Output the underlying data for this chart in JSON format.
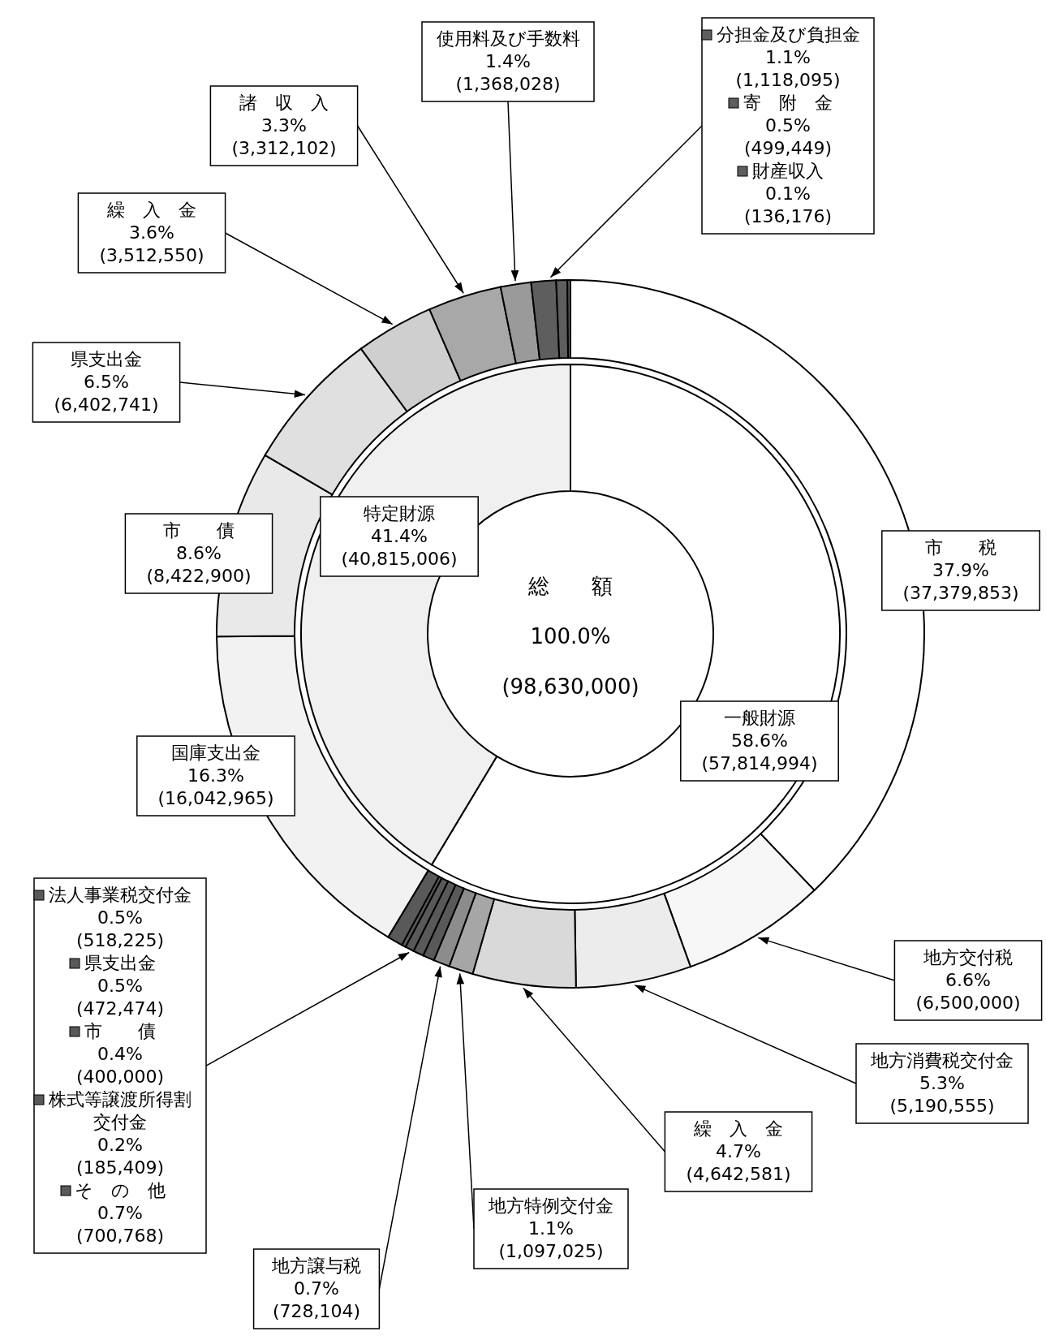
{
  "chart_data": [
    {
      "type": "donut",
      "legend": "left",
      "categories": [
        "市　　税",
        "地方交付税",
        "地方消費税交付金",
        "繰　入　金",
        "地方特例交付金",
        "地方譲与税",
        "法人事業税交付金",
        "県支出金",
        "市　　債",
        "株式等譲渡所得割交付金",
        "そ　の　他",
        "国庫支出金",
        "市　　債",
        "県支出金",
        "繰　入　金",
        "諸　収　入",
        "使用料及び手数料",
        "分担金及び負担金",
        "寄　附　金",
        "財産収入"
      ],
      "values": [
        37379853,
        6500000,
        5190555,
        4642581,
        1097025,
        728104,
        518225,
        472474,
        400000,
        185409,
        700768,
        16042965,
        8422900,
        6402741,
        3512550,
        3312102,
        1368028,
        1118095,
        499449,
        136176
      ],
      "value_labels": [
        "37.9%\n(37,379,853)",
        "6.6%\n(6,500,000)",
        "5.3%\n(5,190,555)",
        "4.7%\n(4,642,581)",
        "1.1%\n(1,097,025)",
        "0.7%\n(728,104)",
        "0.5%\n(518,225)",
        "0.5%\n(472,474)",
        "0.4%\n(400,000)",
        "0.2%\n(185,409)",
        "0.7%\n(700,768)",
        "16.3%\n(16,042,965)",
        "8.6%\n(8,422,900)",
        "6.5%\n(6,402,741)",
        "3.6%\n(3,512,550)",
        "3.3%\n(3,312,102)",
        "1.4%\n(1,368,028)",
        "1.1%\n(1,118,095)",
        "0.5%\n(499,449)",
        "0.1%\n(136,176)"
      ],
      "colors": [
        "#ffffff",
        "#f7f7f7",
        "#ececec",
        "#d9d9d9",
        "#a6a6a6",
        "#8c8c8c",
        "#595959",
        "#595959",
        "#595959",
        "#595959",
        "#595959",
        "#f2f2f2",
        "#e9e9e9",
        "#e0e0e0",
        "#cfcfcf",
        "#a8a8a8",
        "#9a9a9a",
        "#5e5e5e",
        "#5e5e5e",
        "#5e5e5e"
      ]
    },
    {
      "type": "donut",
      "categories": [
        "一般財源",
        "特定財源"
      ],
      "values": [
        57814994,
        40815006
      ],
      "value_labels": [
        "58.6%\n(57,814,994)",
        "41.4%\n(40,815,006)"
      ],
      "colors": [
        "#ffffff",
        "#f0f0f0"
      ],
      "annotations": [
        "総　　額",
        "100.0%",
        "(98,630,000)"
      ]
    }
  ]
}
